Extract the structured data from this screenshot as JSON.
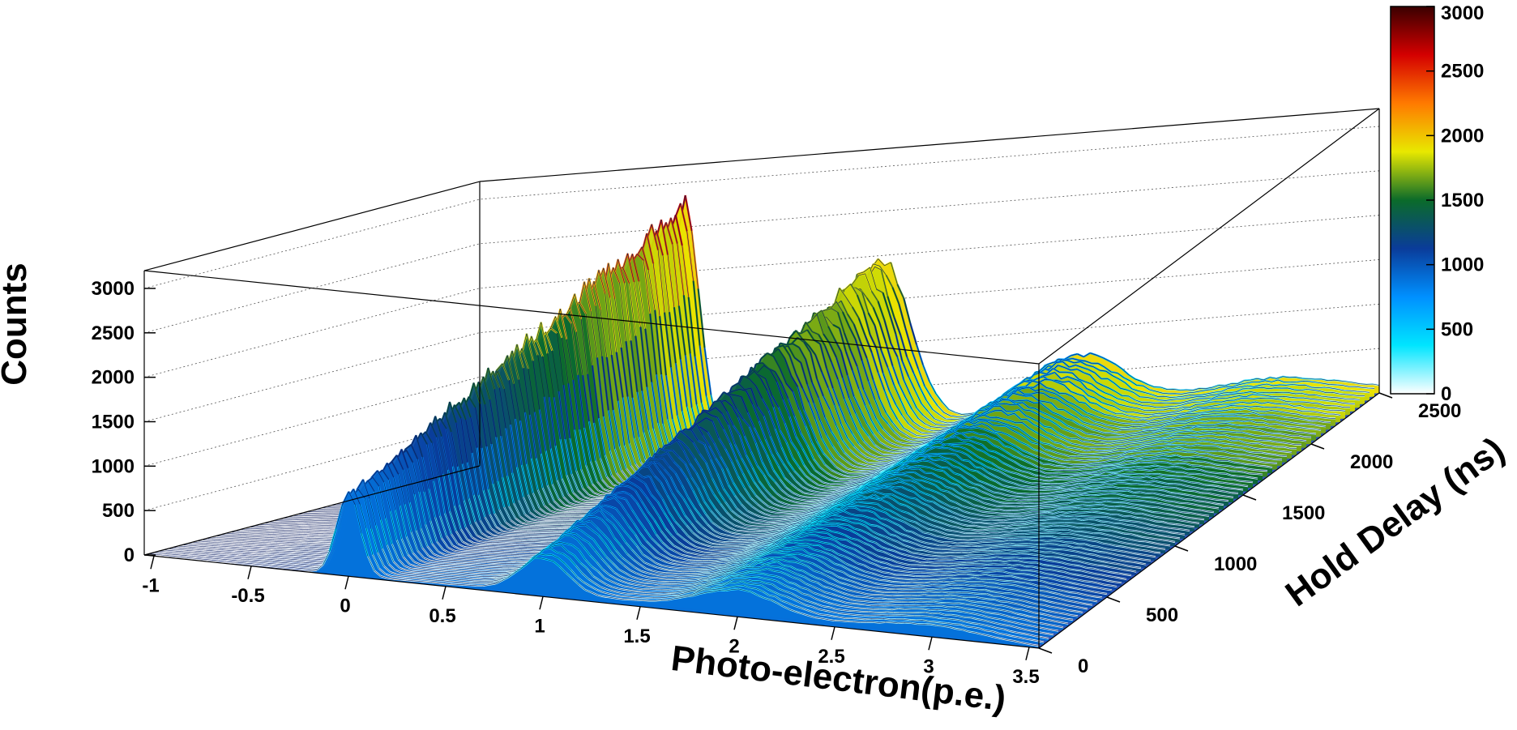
{
  "chart_data": {
    "type": "surface",
    "xlabel": "Photo-electron(p.e.)",
    "ylabel": "Hold Delay (ns)",
    "zlabel": "Counts",
    "xlim": [
      -1.05,
      3.55
    ],
    "ylim": [
      0,
      2500
    ],
    "zlim": [
      0,
      3100
    ],
    "x_ticks": [
      "-1",
      "-0.5",
      "0",
      "0.5",
      "1",
      "1.5",
      "2",
      "2.5",
      "3",
      "3.5"
    ],
    "y_ticks": [
      "0",
      "500",
      "1000",
      "1500",
      "2000",
      "2500"
    ],
    "z_ticks": [
      "0",
      "500",
      "1000",
      "1500",
      "2000",
      "2500",
      "3000"
    ],
    "colorbar": {
      "range": [
        0,
        3000
      ],
      "labels": [
        "0",
        "500",
        "1000",
        "1500",
        "2000",
        "2500",
        "3000"
      ],
      "colors": [
        "#ffffff",
        "#00e5ff",
        "#0090ff",
        "#0a3c9a",
        "#0b6b2a",
        "#e8e800",
        "#ff7a00",
        "#d40000",
        "#3a0000"
      ]
    },
    "peaks": [
      {
        "name": "",
        "x_center_pe": 0.0,
        "sigma_pe": 0.06,
        "z_at_hold0": 900,
        "z_at_hold2500": 2750
      },
      {
        "name": "",
        "x_center_pe": 1.0,
        "sigma_pe": 0.12,
        "z_at_hold0": 380,
        "z_at_hold2500": 1900
      },
      {
        "name": "",
        "x_center_pe": 2.0,
        "sigma_pe": 0.2,
        "z_at_hold0": 250,
        "z_at_hold2500": 650
      },
      {
        "name": "",
        "x_center_pe": 3.0,
        "sigma_pe": 0.3,
        "z_at_hold0": 120,
        "z_at_hold2500": 250
      }
    ],
    "grid": true
  }
}
